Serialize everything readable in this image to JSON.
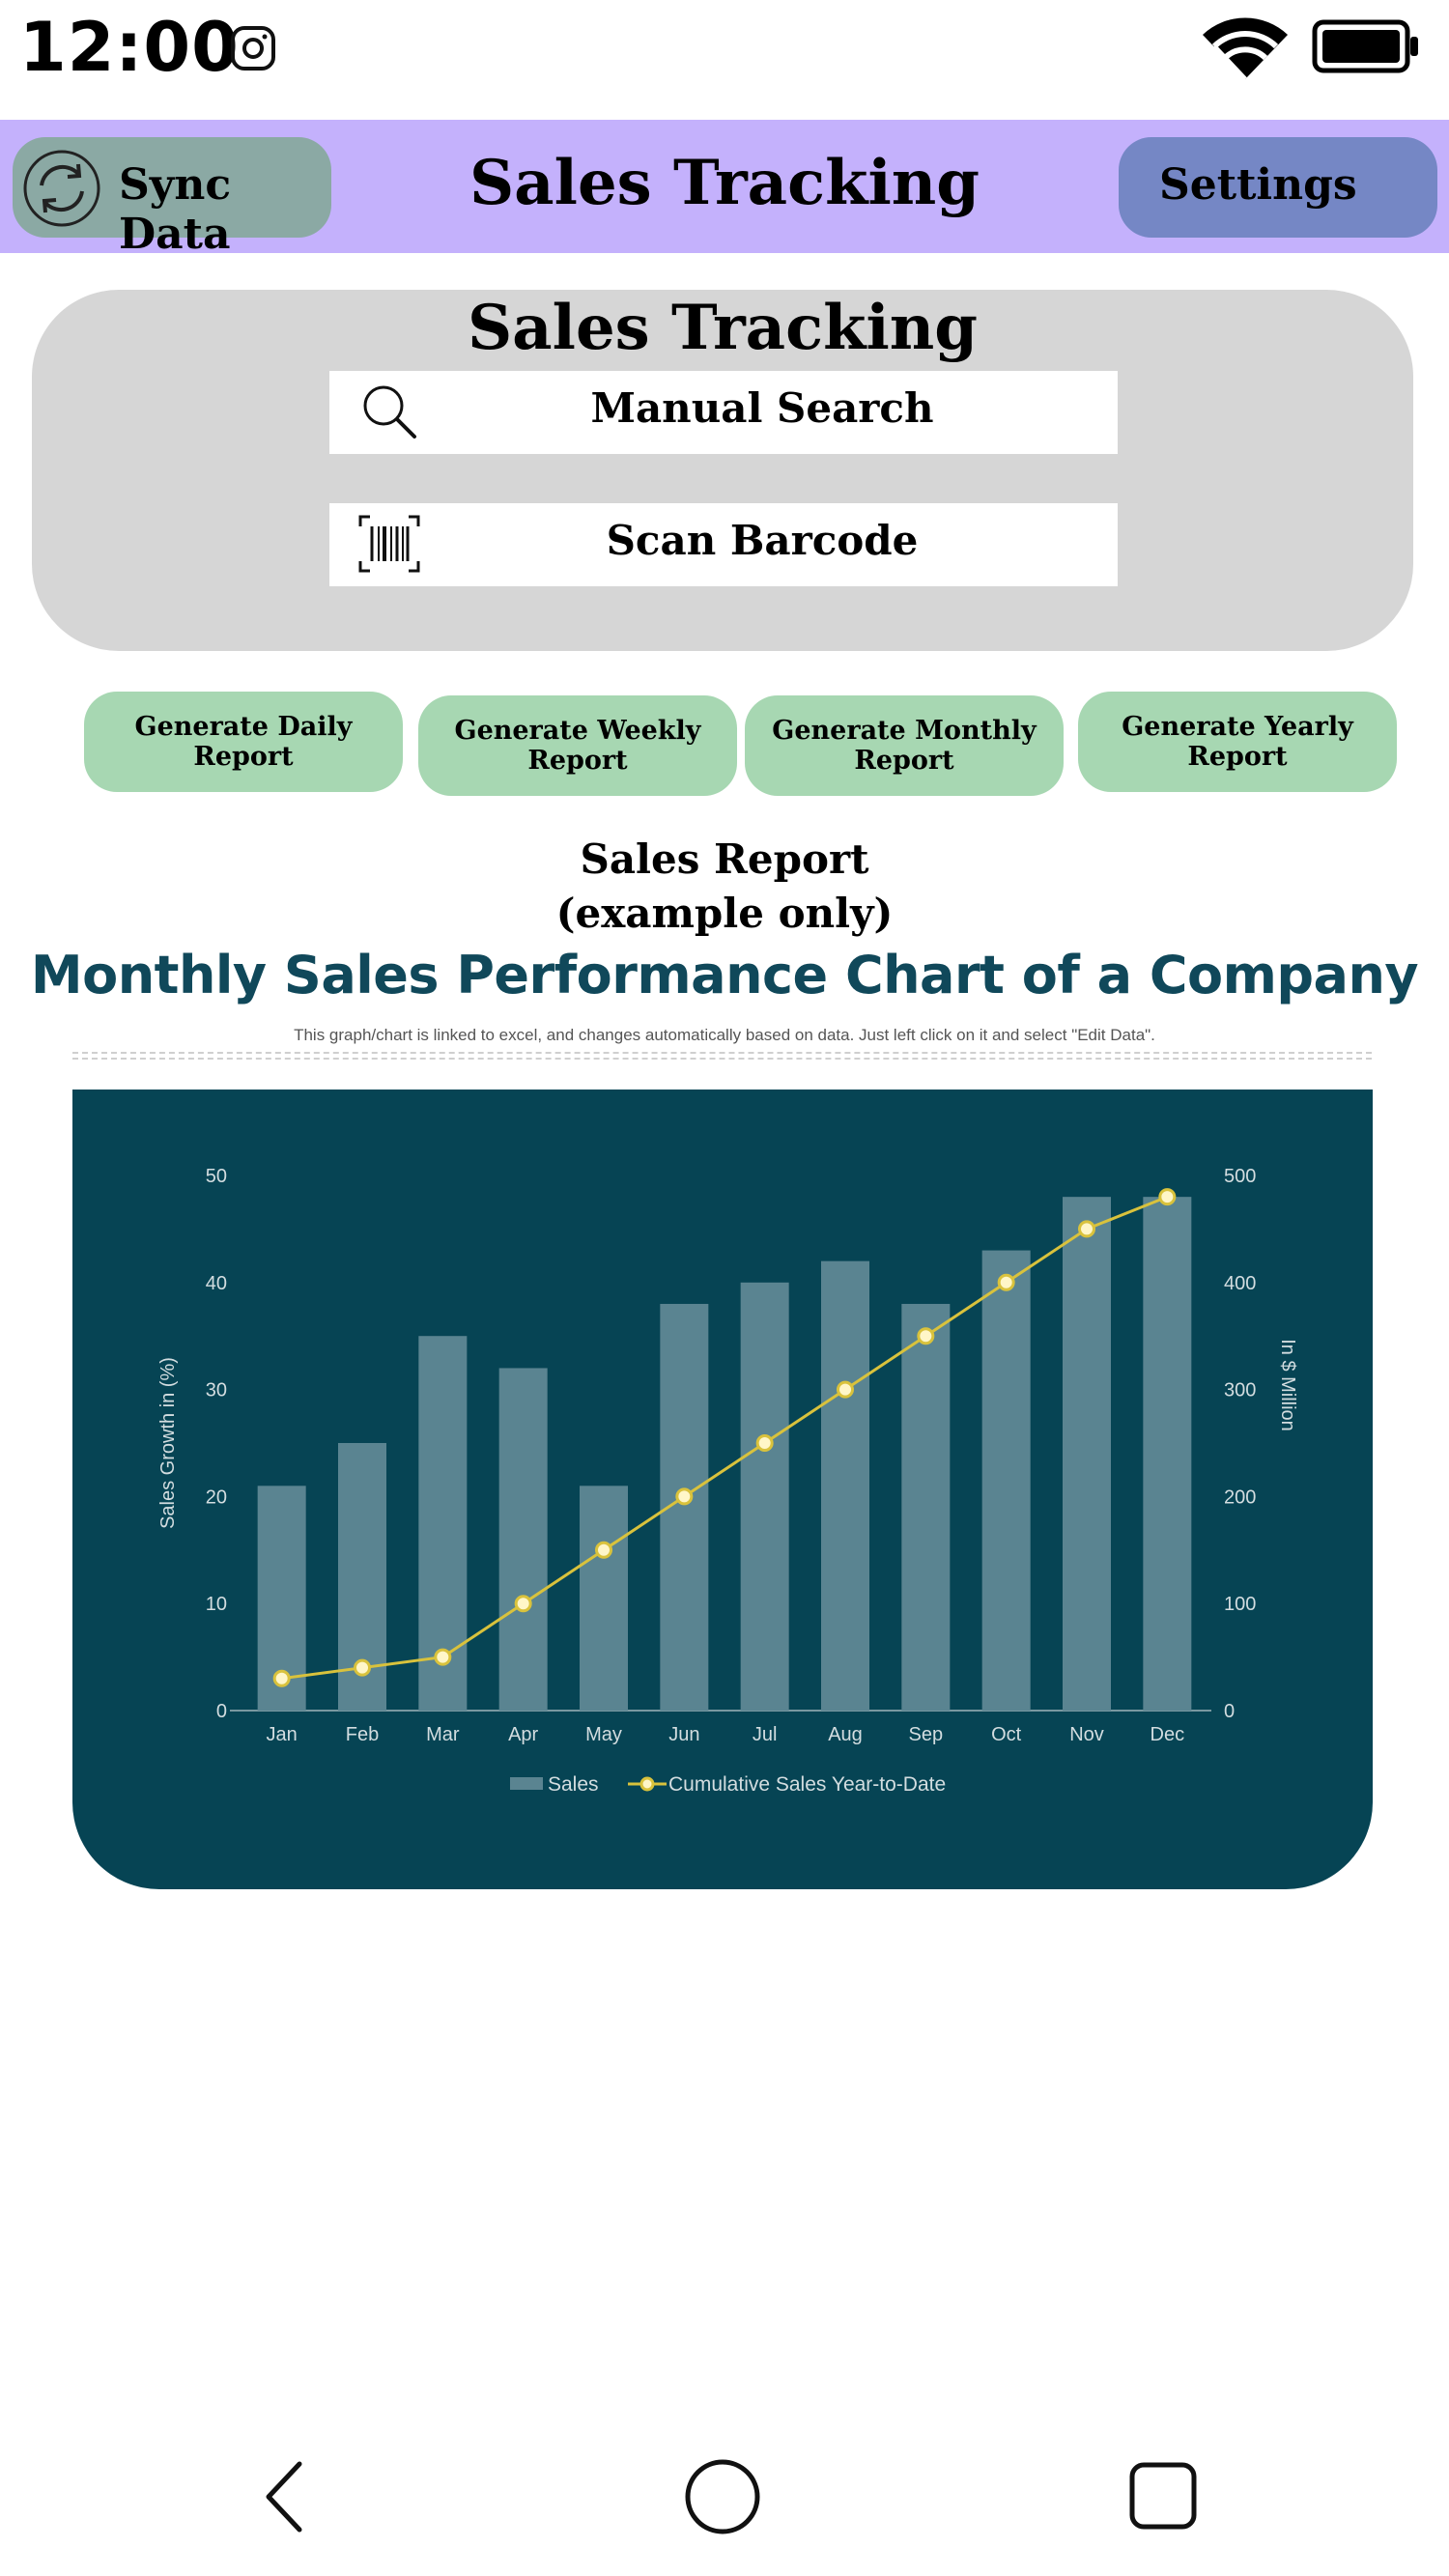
{
  "status_bar": {
    "time": "12:00",
    "icons": [
      "instagram-icon",
      "wifi-icon",
      "battery-icon"
    ]
  },
  "app_bar": {
    "title": "Sales Tracking",
    "sync_label": "Sync Data",
    "settings_label": "Settings",
    "colors": {
      "bar": "#c4b1fc",
      "sync": "#8ba9a4",
      "settings": "#7587c5"
    }
  },
  "search_panel": {
    "title": "Sales Tracking",
    "manual_search_label": "Manual Search",
    "scan_barcode_label": "Scan Barcode"
  },
  "reports": {
    "daily": "Generate Daily Report",
    "weekly": "Generate Weekly Report",
    "monthly": "Generate Monthly Report",
    "yearly": "Generate Yearly Report",
    "color": "#a7d7b2"
  },
  "report_heading": {
    "line1": "Sales Report",
    "line2": "(example only)"
  },
  "chart_data": {
    "type": "bar",
    "title": "Monthly Sales Performance Chart of a Company",
    "subtitle": "This graph/chart is linked to excel, and changes automatically based on data. Just left click on it and select \"Edit Data\".",
    "categories": [
      "Jan",
      "Feb",
      "Mar",
      "Apr",
      "May",
      "Jun",
      "Jul",
      "Aug",
      "Sep",
      "Oct",
      "Nov",
      "Dec"
    ],
    "series": [
      {
        "name": "Sales",
        "type": "bar",
        "axis": "left",
        "values": [
          21,
          25,
          35,
          32,
          21,
          38,
          40,
          42,
          38,
          43,
          48,
          48
        ],
        "color": "#5a8491"
      },
      {
        "name": "Cumulative Sales Year-to-Date",
        "type": "line",
        "axis": "right",
        "values": [
          30,
          40,
          50,
          100,
          150,
          200,
          250,
          300,
          350,
          400,
          450,
          480
        ],
        "color": "#d9c23c"
      }
    ],
    "ylabel": "Sales Growth in (%)",
    "y2label": "In $ Million",
    "ylim": [
      0,
      50
    ],
    "y2lim": [
      0,
      500
    ],
    "yticks": [
      "0",
      "10",
      "20",
      "30",
      "40",
      "50"
    ],
    "y2ticks": [
      "0",
      "100",
      "200",
      "300",
      "400",
      "500"
    ],
    "grid": false,
    "legend": "bottom",
    "background": "#064454"
  },
  "nav_bar": {
    "icons": [
      "back-icon",
      "home-icon",
      "recent-apps-icon"
    ]
  }
}
